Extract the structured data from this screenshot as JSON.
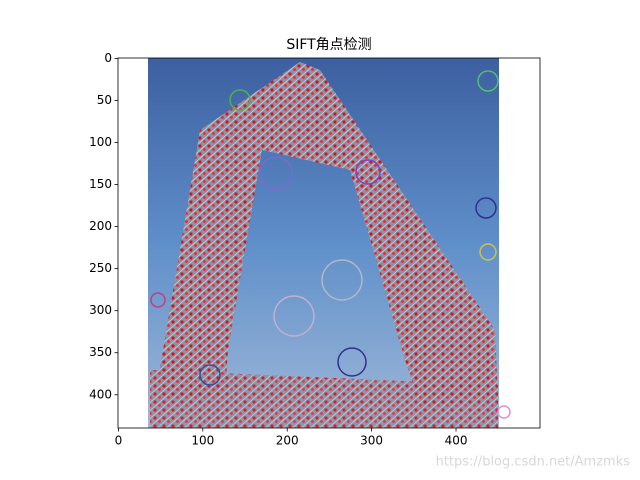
{
  "chart_data": {
    "type": "image",
    "title": "SIFT角点检测",
    "xlim": [
      -0.5,
      499.5
    ],
    "ylim": [
      439.5,
      -0.5
    ],
    "xticks": [
      0,
      100,
      200,
      300,
      400
    ],
    "yticks": [
      0,
      50,
      100,
      150,
      200,
      250,
      300,
      350,
      400
    ]
  },
  "watermark": "https://blog.csdn.net/Amzmks"
}
